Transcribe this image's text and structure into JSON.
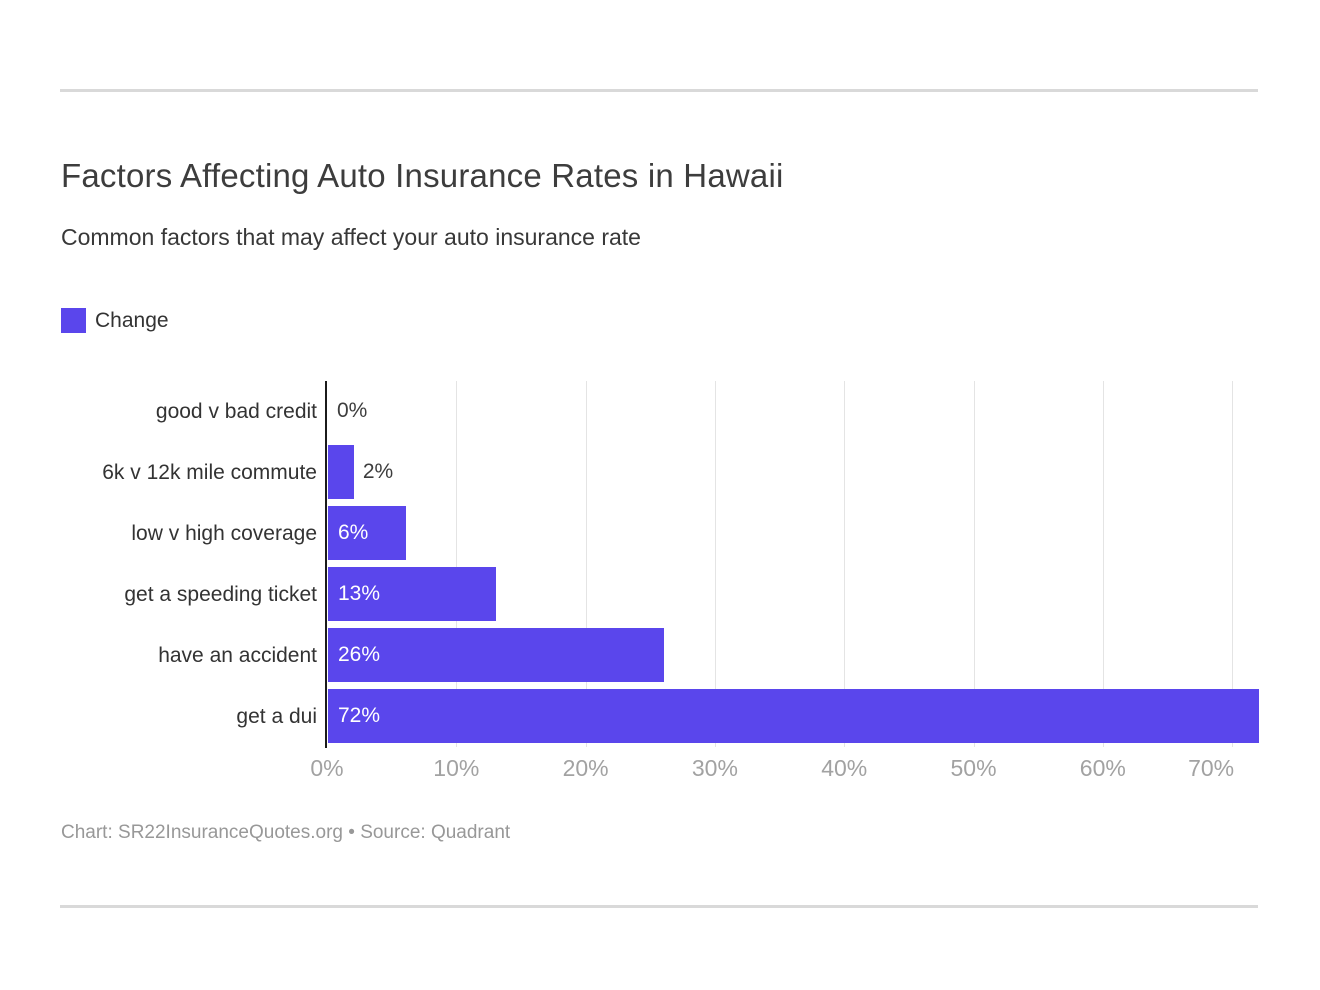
{
  "header": {
    "title": "Factors Affecting Auto Insurance Rates in Hawaii",
    "subtitle": "Common factors that may affect your auto insurance rate"
  },
  "legend": {
    "label": "Change",
    "swatch_color": "#5a46ec"
  },
  "chart_data": {
    "type": "bar",
    "orientation": "horizontal",
    "title": "Factors Affecting Auto Insurance Rates in Hawaii",
    "subtitle": "Common factors that may affect your auto insurance rate",
    "series_name": "Change",
    "categories": [
      "good v bad credit",
      "6k v 12k mile commute",
      "low v high coverage",
      "get a speeding ticket",
      "have an accident",
      "get a dui"
    ],
    "values": [
      0,
      2,
      6,
      13,
      26,
      72
    ],
    "value_labels": [
      "0%",
      "2%",
      "6%",
      "13%",
      "26%",
      "72%"
    ],
    "x_tick_values": [
      0,
      10,
      20,
      30,
      40,
      50,
      60,
      70
    ],
    "x_tick_labels": [
      "0%",
      "10%",
      "20%",
      "30%",
      "40%",
      "50%",
      "60%",
      "70%"
    ],
    "xlim": [
      0,
      72
    ],
    "bar_color": "#5a46ec",
    "grid": true,
    "gridline_color": "#e4e4e4",
    "legend_position": "top-left"
  },
  "footer": {
    "text": "Chart: SR22InsuranceQuotes.org • Source: Quadrant"
  }
}
